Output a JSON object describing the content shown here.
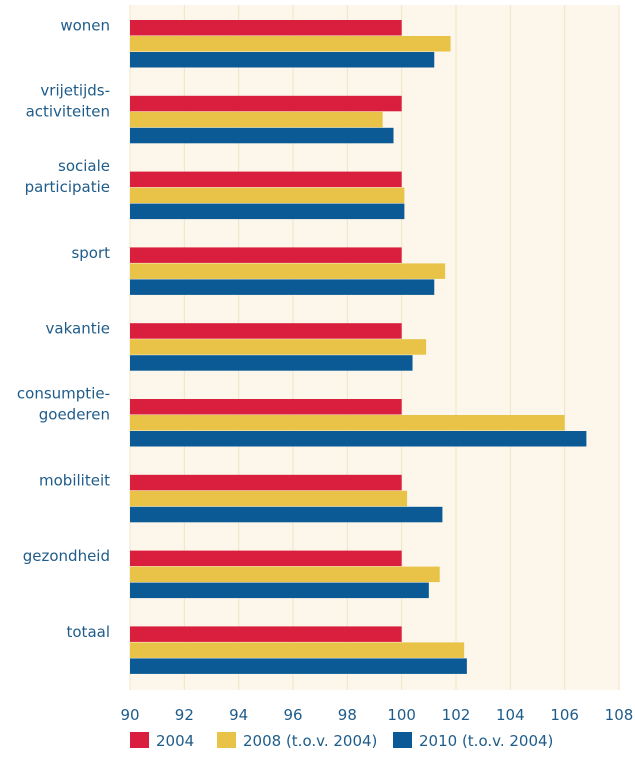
{
  "chart_data": {
    "type": "bar",
    "orientation": "horizontal",
    "title": "",
    "xlabel": "",
    "ylabel": "",
    "categories": [
      [
        "wonen"
      ],
      [
        "vrijetijds-",
        "activiteiten"
      ],
      [
        "sociale",
        "participatie"
      ],
      [
        "sport"
      ],
      [
        "vakantie"
      ],
      [
        "consumptie-",
        "goederen"
      ],
      [
        "mobiliteit"
      ],
      [
        "gezondheid"
      ],
      [
        "totaal"
      ]
    ],
    "series": [
      {
        "name": "2004",
        "color": "#d91f3d",
        "values": [
          100,
          100,
          100,
          100,
          100,
          100,
          100,
          100,
          100
        ]
      },
      {
        "name": "2008 (t.o.v. 2004)",
        "color": "#e8c347",
        "values": [
          101.8,
          99.3,
          100.1,
          101.6,
          100.9,
          106.0,
          100.2,
          101.4,
          102.3
        ]
      },
      {
        "name": "2010 (t.o.v. 2004)",
        "color": "#0b5a96",
        "values": [
          101.2,
          99.7,
          100.1,
          101.2,
          100.4,
          106.8,
          101.5,
          101.0,
          102.4
        ]
      }
    ],
    "xlim": [
      90,
      108
    ],
    "xticks": [
      "90",
      "92",
      "94",
      "96",
      "98",
      "100",
      "102",
      "104",
      "106",
      "108"
    ],
    "xgrid": true,
    "background": "#fcf7ea",
    "grid_color": "#f0e4c8",
    "legend_position": "bottom"
  }
}
